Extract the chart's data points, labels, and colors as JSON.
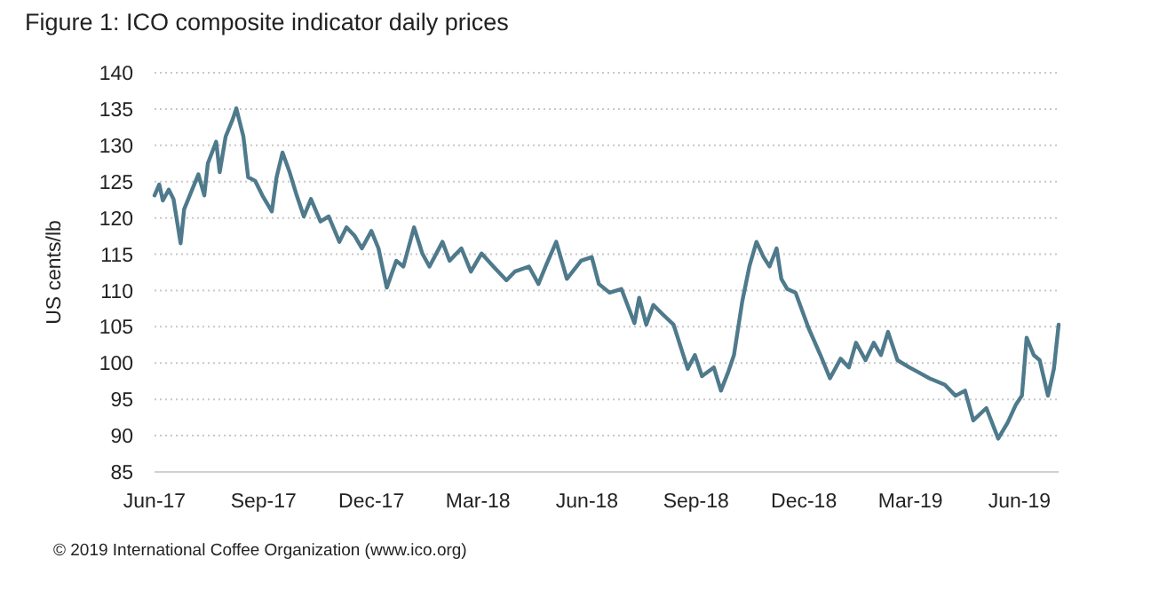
{
  "chart_data": {
    "type": "line",
    "title": "Figure 1: ICO composite indicator daily prices",
    "ylabel": "US cents/lb",
    "annotations": [
      "© 2019 International Coffee Organization (www.ico.org)"
    ],
    "xlim": [
      "2017-06-01",
      "2019-07-04"
    ],
    "ylim": [
      85,
      140
    ],
    "yticks": [
      85,
      90,
      95,
      100,
      105,
      110,
      115,
      120,
      125,
      130,
      135,
      140
    ],
    "xticks": [
      {
        "value": "2017-06-01",
        "label": "Jun-17"
      },
      {
        "value": "2017-09-01",
        "label": "Sep-17"
      },
      {
        "value": "2017-12-01",
        "label": "Dec-17"
      },
      {
        "value": "2018-03-01",
        "label": "Mar-18"
      },
      {
        "value": "2018-06-01",
        "label": "Jun-18"
      },
      {
        "value": "2018-09-01",
        "label": "Sep-18"
      },
      {
        "value": "2018-12-01",
        "label": "Dec-18"
      },
      {
        "value": "2019-03-01",
        "label": "Mar-19"
      },
      {
        "value": "2019-06-01",
        "label": "Jun-19"
      }
    ],
    "grid": "y",
    "marker": "none",
    "line_style": "solid",
    "x": [
      "2017-06-01",
      "2017-06-05",
      "2017-06-08",
      "2017-06-13",
      "2017-06-17",
      "2017-06-23",
      "2017-06-26",
      "2017-07-02",
      "2017-07-08",
      "2017-07-13",
      "2017-07-16",
      "2017-07-23",
      "2017-07-26",
      "2017-07-31",
      "2017-08-06",
      "2017-08-09",
      "2017-08-15",
      "2017-08-19",
      "2017-08-25",
      "2017-08-31",
      "2017-09-08",
      "2017-09-12",
      "2017-09-17",
      "2017-09-23",
      "2017-09-29",
      "2017-10-05",
      "2017-10-11",
      "2017-10-19",
      "2017-10-26",
      "2017-11-04",
      "2017-11-10",
      "2017-11-17",
      "2017-11-23",
      "2017-12-01",
      "2017-12-07",
      "2017-12-14",
      "2017-12-22",
      "2017-12-28",
      "2018-01-06",
      "2018-01-13",
      "2018-01-19",
      "2018-01-30",
      "2018-02-05",
      "2018-02-15",
      "2018-02-23",
      "2018-03-04",
      "2018-03-14",
      "2018-03-25",
      "2018-04-01",
      "2018-04-13",
      "2018-04-21",
      "2018-04-27",
      "2018-05-06",
      "2018-05-15",
      "2018-05-27",
      "2018-06-05",
      "2018-06-11",
      "2018-06-20",
      "2018-06-30",
      "2018-07-11",
      "2018-07-15",
      "2018-07-21",
      "2018-07-27",
      "2018-08-04",
      "2018-08-13",
      "2018-08-25",
      "2018-08-31",
      "2018-09-06",
      "2018-09-16",
      "2018-09-22",
      "2018-09-28",
      "2018-10-03",
      "2018-10-10",
      "2018-10-16",
      "2018-10-22",
      "2018-10-28",
      "2018-11-02",
      "2018-11-08",
      "2018-11-12",
      "2018-11-17",
      "2018-11-24",
      "2018-12-05",
      "2018-12-15",
      "2018-12-23",
      "2019-01-01",
      "2019-01-08",
      "2019-01-14",
      "2019-01-22",
      "2019-01-29",
      "2019-02-04",
      "2019-02-10",
      "2019-02-18",
      "2019-02-28",
      "2019-03-08",
      "2019-03-17",
      "2019-03-30",
      "2019-04-08",
      "2019-04-16",
      "2019-04-23",
      "2019-05-04",
      "2019-05-14",
      "2019-05-22",
      "2019-05-29",
      "2019-06-03",
      "2019-06-07",
      "2019-06-13",
      "2019-06-18",
      "2019-06-25",
      "2019-06-30",
      "2019-07-04"
    ],
    "series": [
      {
        "color": "#4e7a8c",
        "values": [
          123.1,
          124.6,
          122.4,
          123.9,
          122.6,
          116.5,
          121.2,
          123.6,
          126,
          123.1,
          127.5,
          130.5,
          126.3,
          131.2,
          133.6,
          135.1,
          131.2,
          125.6,
          125.1,
          123.1,
          120.9,
          125.6,
          129,
          126.3,
          123.1,
          120.2,
          122.6,
          119.5,
          120.2,
          116.7,
          118.7,
          117.5,
          115.8,
          118.2,
          115.8,
          110.4,
          114.1,
          113.3,
          118.7,
          115.1,
          113.3,
          116.7,
          114.1,
          115.8,
          112.6,
          115.1,
          113.3,
          111.4,
          112.6,
          113.3,
          110.9,
          113.3,
          116.7,
          111.6,
          114.1,
          114.6,
          110.9,
          109.7,
          110.2,
          105.5,
          109,
          105.3,
          108,
          106.7,
          105.3,
          99.2,
          101.1,
          98.2,
          99.4,
          96.2,
          98.7,
          101.1,
          108.5,
          113.3,
          116.7,
          114.6,
          113.3,
          115.8,
          111.6,
          110.2,
          109.7,
          104.8,
          101.1,
          97.9,
          100.6,
          99.4,
          102.8,
          100.4,
          102.8,
          101.1,
          104.3,
          100.4,
          99.4,
          98.7,
          97.9,
          97,
          95.5,
          96.2,
          92.1,
          93.8,
          89.6,
          91.8,
          94.3,
          95.5,
          103.5,
          101.1,
          100.4,
          95.5,
          99.2,
          105.3
        ]
      }
    ]
  }
}
